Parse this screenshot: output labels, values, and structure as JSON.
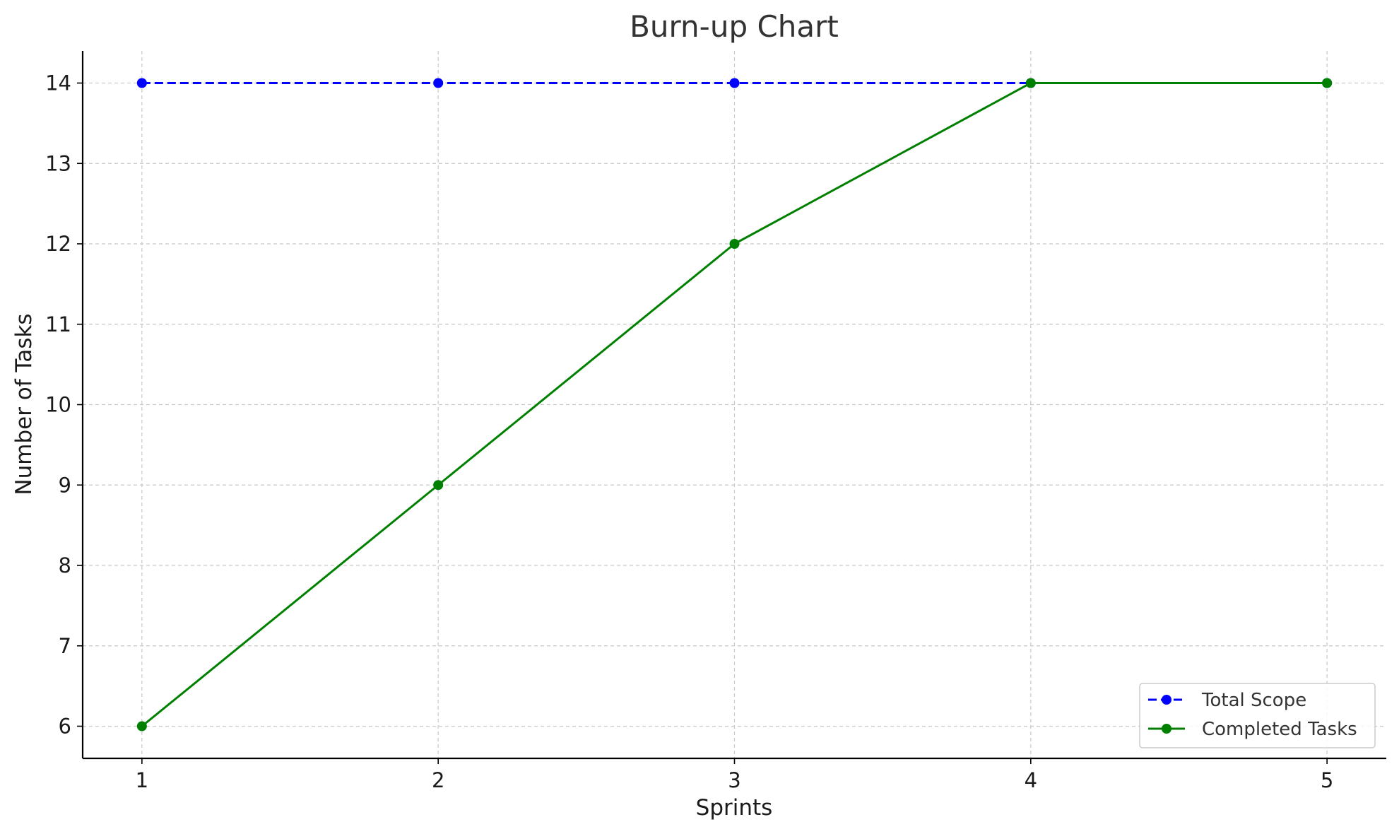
{
  "chart_data": {
    "type": "line",
    "title": "Burn-up Chart",
    "xlabel": "Sprints",
    "ylabel": "Number of Tasks",
    "x": [
      1,
      2,
      3,
      4,
      5
    ],
    "xlim": [
      0.8,
      5.2
    ],
    "ylim": [
      5.6,
      14.4
    ],
    "xticks": [
      "1",
      "2",
      "3",
      "4",
      "5"
    ],
    "yticks": [
      "6",
      "7",
      "8",
      "9",
      "10",
      "11",
      "12",
      "13",
      "14"
    ],
    "grid": true,
    "legend_position": "lower right",
    "series": [
      {
        "name": "Total Scope",
        "values": [
          14,
          14,
          14,
          14,
          14
        ],
        "color": "#0000ff",
        "linestyle": "dashed",
        "marker": "circle"
      },
      {
        "name": "Completed Tasks",
        "values": [
          6,
          9,
          12,
          14,
          14
        ],
        "color": "#008000",
        "linestyle": "solid",
        "marker": "circle"
      }
    ]
  }
}
